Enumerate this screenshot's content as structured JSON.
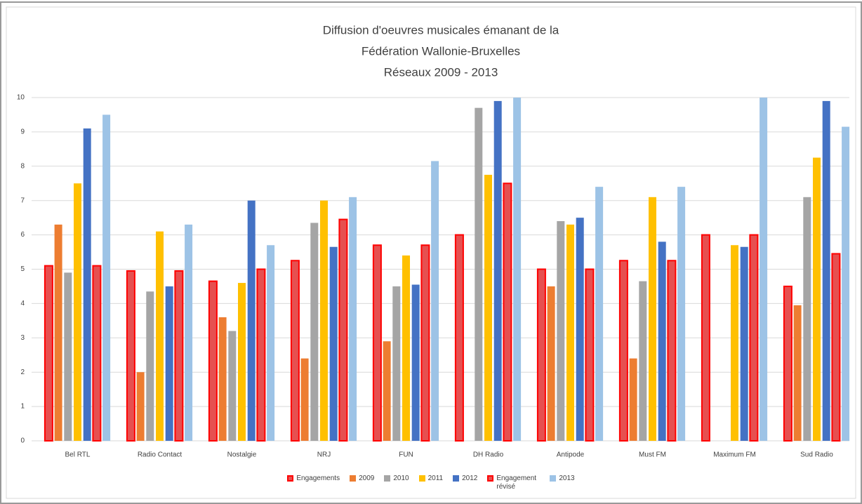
{
  "chart_data": {
    "type": "bar",
    "title": [
      "Diffusion d'oeuvres musicales émanant  de la",
      "Fédération  Wallonie-Bruxelles",
      "Réseaux  2009 - 2013"
    ],
    "categories": [
      "Bel RTL",
      "Radio Contact",
      "Nostalgie",
      "NRJ",
      "FUN",
      "DH Radio",
      "Antipode",
      "Must FM",
      "Maximum FM",
      "Sud Radio"
    ],
    "series": [
      {
        "name": "Engagements",
        "color": "#E65050",
        "edgecolor": "#FF0000",
        "values": [
          5.1,
          4.95,
          4.65,
          5.25,
          5.7,
          6.0,
          5.0,
          5.25,
          6.0,
          4.5
        ]
      },
      {
        "name": "2009",
        "color": "#ED7D31",
        "values": [
          6.3,
          2.0,
          3.6,
          2.4,
          2.9,
          null,
          4.5,
          2.4,
          null,
          3.95
        ]
      },
      {
        "name": "2010",
        "color": "#A5A5A5",
        "values": [
          4.9,
          4.35,
          3.2,
          6.35,
          4.5,
          9.7,
          6.4,
          4.65,
          null,
          7.1
        ]
      },
      {
        "name": "2011",
        "color": "#FFC000",
        "values": [
          7.5,
          6.1,
          4.6,
          7.0,
          5.4,
          7.75,
          6.3,
          7.1,
          5.7,
          8.25
        ]
      },
      {
        "name": "2012",
        "color": "#4472C4",
        "values": [
          9.1,
          4.5,
          7.0,
          5.65,
          4.55,
          9.9,
          6.5,
          5.8,
          5.65,
          9.9
        ]
      },
      {
        "name": "Engagement révisé",
        "color": "#E65050",
        "edgecolor": "#FF0000",
        "values": [
          5.1,
          4.95,
          5.0,
          6.45,
          5.7,
          7.5,
          5.0,
          5.25,
          6.0,
          5.45
        ]
      },
      {
        "name": "2013",
        "color": "#9DC3E6",
        "values": [
          9.5,
          6.3,
          5.7,
          7.1,
          8.15,
          10,
          7.4,
          7.4,
          10,
          9.15
        ]
      }
    ],
    "ylim": [
      0,
      10
    ],
    "yticks": [
      0,
      1,
      2,
      3,
      4,
      5,
      6,
      7,
      8,
      9,
      10
    ],
    "grid": true,
    "legend": "bottom"
  }
}
